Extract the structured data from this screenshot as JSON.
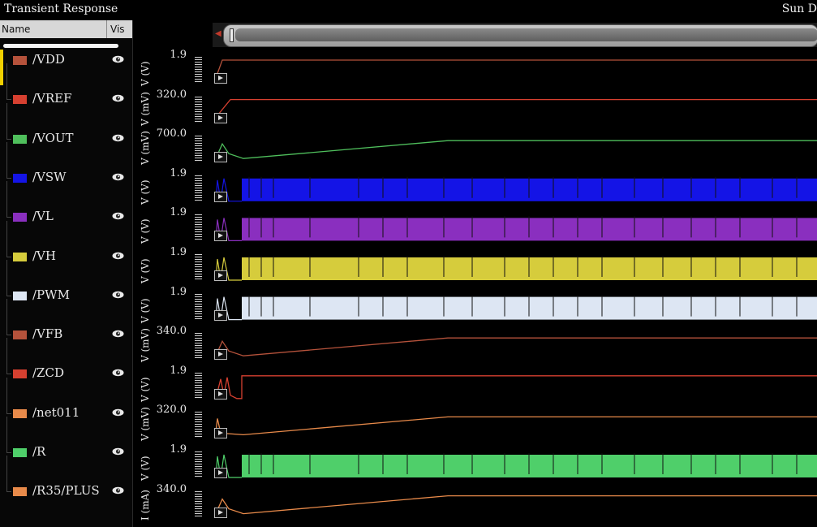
{
  "window": {
    "title": "Transient Response",
    "top_right": "Sun D"
  },
  "browser": {
    "col_name": "Name",
    "col_vis": "Vis"
  },
  "signals": [
    {
      "name": "/VDD",
      "color": "#b5523b",
      "unit": "V (V)",
      "tick": "1.9"
    },
    {
      "name": "/VREF",
      "color": "#d64030",
      "unit": "V (mV)",
      "tick": "320.0"
    },
    {
      "name": "/VOUT",
      "color": "#4fbf5c",
      "unit": "V (mV)",
      "tick": "700.0"
    },
    {
      "name": "/VSW",
      "color": "#1414e6",
      "unit": "V (V)",
      "tick": "1.9"
    },
    {
      "name": "/VL",
      "color": "#8a2fbf",
      "unit": "V (V)",
      "tick": "1.9"
    },
    {
      "name": "/VH",
      "color": "#d6cc3c",
      "unit": "V (V)",
      "tick": "1.9"
    },
    {
      "name": "/PWM",
      "color": "#dde6f3",
      "unit": "V (V)",
      "tick": "1.9"
    },
    {
      "name": "/VFB",
      "color": "#b5523b",
      "unit": "V (mV)",
      "tick": "340.0"
    },
    {
      "name": "/ZCD",
      "color": "#d64030",
      "unit": "V (V)",
      "tick": "1.9"
    },
    {
      "name": "/net011",
      "color": "#e88a4a",
      "unit": "V (mV)",
      "tick": "320.0"
    },
    {
      "name": "/R",
      "color": "#4fcf6a",
      "unit": "V (V)",
      "tick": "1.9"
    },
    {
      "name": "/R35/PLUS",
      "color": "#e88a4a",
      "unit": "I (mA)",
      "tick": "340.0"
    }
  ]
}
